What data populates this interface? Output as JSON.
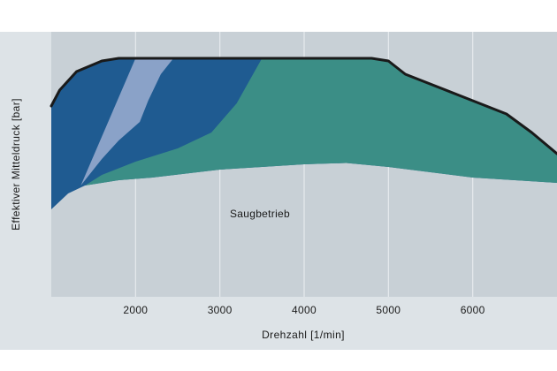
{
  "chart_data": {
    "type": "area",
    "xlabel": "Drehzahl  [1/min]",
    "ylabel": "Effektiver Mitteldruck [bar]",
    "xlim": [
      1000,
      7000
    ],
    "ylim": [
      0,
      1
    ],
    "x_ticks": [
      2000,
      3000,
      4000,
      5000,
      6000
    ],
    "y_ticks": [],
    "grid": "vertical",
    "colors": {
      "plot_background": "#c8d0d6",
      "axis_band": "#dde3e7",
      "series_dark_blue": "#1f5b91",
      "series_light_blue": "#8aa2c8",
      "series_teal": "#3b8e86",
      "full_load_line": "#1a1a1a",
      "grid": "#e6eaed"
    },
    "annotations": [
      {
        "text": "Saugbetrieb",
        "x": 4000,
        "y": 0.3
      }
    ],
    "series": [
      {
        "key": "dark_blue",
        "color": "#1f5b91",
        "values": [
          [
            1000,
            0.72
          ],
          [
            1100,
            0.78
          ],
          [
            1300,
            0.85
          ],
          [
            1600,
            0.89
          ],
          [
            1800,
            0.9
          ],
          [
            4800,
            0.9
          ],
          [
            5000,
            0.89
          ],
          [
            5200,
            0.84
          ],
          [
            6000,
            0.74
          ],
          [
            6400,
            0.69
          ],
          [
            6700,
            0.62
          ],
          [
            7000,
            0.54
          ]
        ],
        "baseline": [
          [
            1000,
            0.33
          ],
          [
            1200,
            0.39
          ],
          [
            1400,
            0.42
          ],
          [
            1800,
            0.44
          ],
          [
            2200,
            0.45
          ],
          [
            3000,
            0.48
          ],
          [
            3500,
            0.49
          ],
          [
            4000,
            0.5
          ],
          [
            4500,
            0.505
          ],
          [
            5000,
            0.49
          ],
          [
            5500,
            0.47
          ],
          [
            6000,
            0.45
          ],
          [
            6500,
            0.44
          ],
          [
            7000,
            0.43
          ]
        ]
      },
      {
        "key": "light_blue",
        "color": "#8aa2c8",
        "values": [
          [
            2000,
            0.9
          ],
          [
            2450,
            0.9
          ],
          [
            2300,
            0.84
          ],
          [
            2150,
            0.74
          ],
          [
            2050,
            0.66
          ],
          [
            1800,
            0.59
          ],
          [
            1600,
            0.52
          ],
          [
            1450,
            0.46
          ],
          [
            1350,
            0.42
          ]
        ],
        "baseline": []
      },
      {
        "key": "teal",
        "color": "#3b8e86",
        "values": [
          [
            1300,
            0.4
          ],
          [
            1600,
            0.46
          ],
          [
            2000,
            0.51
          ],
          [
            2500,
            0.56
          ],
          [
            2900,
            0.62
          ],
          [
            3200,
            0.73
          ],
          [
            3500,
            0.9
          ],
          [
            4800,
            0.9
          ],
          [
            5000,
            0.89
          ],
          [
            5200,
            0.84
          ],
          [
            6000,
            0.74
          ],
          [
            6400,
            0.69
          ],
          [
            6700,
            0.62
          ],
          [
            7000,
            0.54
          ]
        ],
        "baseline": [
          [
            1300,
            0.4
          ],
          [
            1400,
            0.42
          ],
          [
            1800,
            0.44
          ],
          [
            2200,
            0.45
          ],
          [
            3000,
            0.48
          ],
          [
            3500,
            0.49
          ],
          [
            4000,
            0.5
          ],
          [
            4500,
            0.505
          ],
          [
            5000,
            0.49
          ],
          [
            5500,
            0.47
          ],
          [
            6000,
            0.45
          ],
          [
            6500,
            0.44
          ],
          [
            7000,
            0.43
          ]
        ]
      }
    ],
    "full_load_curve": [
      [
        1000,
        0.72
      ],
      [
        1100,
        0.78
      ],
      [
        1300,
        0.85
      ],
      [
        1600,
        0.89
      ],
      [
        1800,
        0.9
      ],
      [
        4800,
        0.9
      ],
      [
        5000,
        0.89
      ],
      [
        5200,
        0.84
      ],
      [
        6000,
        0.74
      ],
      [
        6400,
        0.69
      ],
      [
        6700,
        0.62
      ],
      [
        7000,
        0.54
      ]
    ]
  }
}
